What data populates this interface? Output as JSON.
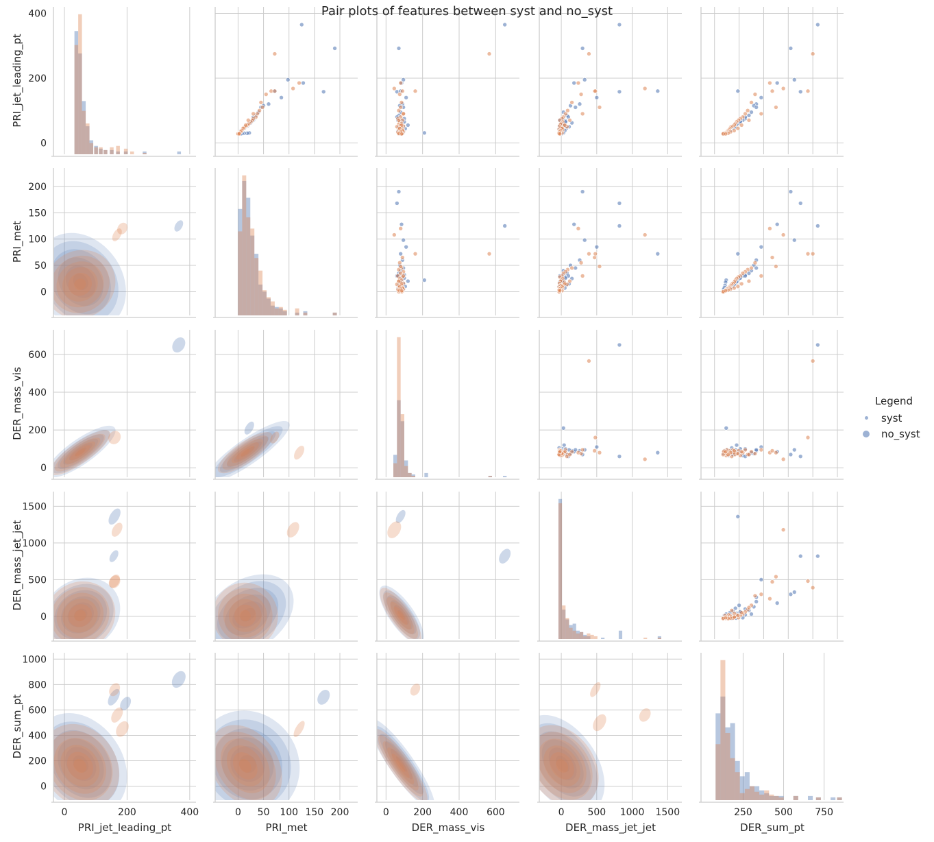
{
  "title": "Pair plots of features between syst and no_syst",
  "legend": {
    "title": "Legend",
    "items": [
      {
        "label": "syst",
        "color": "#4c72b0",
        "marker": "small-dot"
      },
      {
        "label": "no_syst",
        "color": "#4c72b0",
        "marker": "large-dot"
      }
    ]
  },
  "colors": {
    "syst": "#4c72b0",
    "no_syst": "#dd8452",
    "grid": "#cccccc",
    "text": "#262626"
  },
  "chart_data": {
    "type": "pairplot",
    "variables": [
      {
        "name": "PRI_jet_leading_pt",
        "lim": [
          -35,
          420
        ],
        "ticks": [
          0,
          200,
          400
        ]
      },
      {
        "name": "PRI_met",
        "lim": [
          -45,
          235
        ],
        "ticks": [
          0,
          50,
          100,
          150,
          200
        ]
      },
      {
        "name": "DER_mass_vis",
        "lim": [
          -50,
          730
        ],
        "ticks": [
          0,
          200,
          400,
          600
        ]
      },
      {
        "name": "DER_mass_jet_jet",
        "lim": [
          -310,
          1700
        ],
        "ticks": [
          0,
          500,
          1000,
          1500
        ]
      },
      {
        "name": "DER_sum_pt",
        "lim": [
          -110,
          1050
        ],
        "ticks": [
          0,
          200,
          400,
          600,
          800,
          1000
        ]
      }
    ],
    "diag_lim": [
      {
        "lim": [
          -35,
          420
        ],
        "ticks": [
          0,
          200,
          400
        ]
      },
      {
        "lim": [
          -45,
          235
        ],
        "ticks": [
          0,
          100,
          200
        ]
      },
      {
        "lim": [
          -50,
          730
        ],
        "ticks": [
          0,
          200,
          400,
          600
        ]
      },
      {
        "lim": [
          -310,
          1700
        ],
        "ticks": [
          0,
          1000
        ]
      },
      {
        "lim": [
          -10,
          870
        ],
        "ticks": [
          250,
          500,
          750
        ]
      }
    ],
    "hist": [
      {
        "bins": [
          [
            32,
            12
          ],
          [
            44,
            12
          ],
          [
            56,
            12
          ],
          [
            68,
            12
          ],
          [
            80,
            12
          ],
          [
            95,
            12
          ],
          [
            110,
            12
          ],
          [
            125,
            12
          ],
          [
            145,
            12
          ],
          [
            165,
            12
          ],
          [
            190,
            12
          ],
          [
            210,
            12
          ],
          [
            250,
            12
          ],
          [
            360,
            12
          ]
        ],
        "syst": [
          0.88,
          0.72,
          0.38,
          0.2,
          0.1,
          0.06,
          0.04,
          0.03,
          0.03,
          0.02,
          0.02,
          0.0,
          0.02,
          0.02
        ],
        "no_syst": [
          0.78,
          1.0,
          0.31,
          0.22,
          0.08,
          0.05,
          0.05,
          0.03,
          0.05,
          0.06,
          0.04,
          0.02,
          0.01,
          0.0
        ]
      },
      {
        "bins": [
          [
            0,
            8
          ],
          [
            8,
            8
          ],
          [
            16,
            8
          ],
          [
            24,
            8
          ],
          [
            32,
            8
          ],
          [
            40,
            8
          ],
          [
            48,
            8
          ],
          [
            56,
            8
          ],
          [
            64,
            8
          ],
          [
            72,
            8
          ],
          [
            80,
            8
          ],
          [
            88,
            8
          ],
          [
            112,
            8
          ],
          [
            128,
            8
          ],
          [
            186,
            8
          ]
        ],
        "syst": [
          0.76,
          0.96,
          0.84,
          0.57,
          0.44,
          0.22,
          0.17,
          0.12,
          0.07,
          0.06,
          0.05,
          0.03,
          0.02,
          0.03,
          0.02
        ],
        "no_syst": [
          0.6,
          1.0,
          0.7,
          0.62,
          0.41,
          0.32,
          0.18,
          0.13,
          0.1,
          0.05,
          0.06,
          0.04,
          0.05,
          0.02,
          0.02
        ],
        "note_max_scale": 0.75
      },
      {
        "bins": [
          [
            40,
            20
          ],
          [
            60,
            20
          ],
          [
            80,
            20
          ],
          [
            100,
            20
          ],
          [
            120,
            20
          ],
          [
            140,
            20
          ],
          [
            210,
            20
          ],
          [
            560,
            20
          ],
          [
            640,
            20
          ]
        ],
        "syst": [
          0.16,
          0.55,
          0.4,
          0.12,
          0.03,
          0.02,
          0.03,
          0.01,
          0.01
        ],
        "no_syst": [
          0.1,
          1.0,
          0.45,
          0.08,
          0.03,
          0.01,
          0.0,
          0.01,
          0.0
        ]
      },
      {
        "bins": [
          [
            -40,
            50
          ],
          [
            10,
            50
          ],
          [
            60,
            50
          ],
          [
            110,
            50
          ],
          [
            160,
            50
          ],
          [
            210,
            50
          ],
          [
            260,
            50
          ],
          [
            310,
            50
          ],
          [
            360,
            50
          ],
          [
            410,
            50
          ],
          [
            460,
            50
          ],
          [
            560,
            50
          ],
          [
            810,
            50
          ],
          [
            1160,
            50
          ],
          [
            1360,
            50
          ]
        ],
        "syst": [
          1.0,
          0.21,
          0.14,
          0.1,
          0.11,
          0.06,
          0.05,
          0.03,
          0.02,
          0.0,
          0.0,
          0.01,
          0.06,
          0.0,
          0.02
        ],
        "no_syst": [
          0.97,
          0.24,
          0.15,
          0.08,
          0.06,
          0.04,
          0.05,
          0.02,
          0.04,
          0.03,
          0.02,
          0.0,
          0.0,
          0.01,
          0.01
        ]
      },
      {
        "bins": [
          [
            80,
            30
          ],
          [
            110,
            30
          ],
          [
            140,
            30
          ],
          [
            170,
            30
          ],
          [
            200,
            30
          ],
          [
            230,
            30
          ],
          [
            260,
            30
          ],
          [
            290,
            30
          ],
          [
            320,
            30
          ],
          [
            350,
            30
          ],
          [
            380,
            30
          ],
          [
            410,
            30
          ],
          [
            440,
            30
          ],
          [
            470,
            30
          ],
          [
            560,
            30
          ],
          [
            650,
            30
          ],
          [
            700,
            30
          ],
          [
            790,
            30
          ],
          [
            830,
            30
          ]
        ],
        "syst": [
          0.62,
          0.74,
          0.52,
          0.55,
          0.28,
          0.17,
          0.2,
          0.1,
          0.1,
          0.07,
          0.05,
          0.03,
          0.03,
          0.03,
          0.03,
          0.03,
          0.02,
          0.02,
          0.02
        ],
        "no_syst": [
          0.4,
          1.0,
          0.48,
          0.3,
          0.2,
          0.05,
          0.08,
          0.1,
          0.06,
          0.04,
          0.07,
          0.04,
          0.03,
          0.02,
          0.03,
          0.0,
          0.02,
          0.0,
          0.02
        ]
      }
    ],
    "series": {
      "syst": {
        "PRI_jet_leading_pt": [
          292,
          195,
          158,
          185,
          140,
          120,
          115,
          95,
          85,
          75,
          70,
          68,
          62,
          60,
          55,
          52,
          50,
          48,
          45,
          44,
          42,
          40,
          38,
          36,
          35,
          33,
          32,
          31,
          30,
          30,
          29,
          28,
          365,
          160,
          110,
          80,
          65,
          58,
          47,
          39
        ],
        "PRI_met": [
          190,
          98,
          168,
          128,
          85,
          60,
          50,
          40,
          35,
          32,
          30,
          28,
          25,
          22,
          20,
          18,
          15,
          14,
          12,
          10,
          9,
          8,
          7,
          6,
          5,
          4,
          3,
          22,
          18,
          12,
          8,
          5,
          125,
          72,
          45,
          30,
          26,
          19,
          11,
          6
        ],
        "DER_mass_vis": [
          70,
          95,
          60,
          85,
          110,
          90,
          75,
          80,
          70,
          100,
          65,
          85,
          90,
          80,
          120,
          75,
          95,
          85,
          70,
          105,
          80,
          90,
          75,
          65,
          85,
          95,
          70,
          210,
          85,
          80,
          90,
          75,
          650,
          80,
          95,
          60,
          100,
          85,
          70,
          90
        ],
        "DER_mass_jet_jet": [
          300,
          330,
          820,
          180,
          500,
          260,
          130,
          30,
          80,
          20,
          -20,
          60,
          150,
          0,
          40,
          -25,
          110,
          0,
          70,
          -30,
          10,
          -10,
          50,
          0,
          -30,
          -20,
          -25,
          30,
          0,
          -15,
          10,
          -25,
          820,
          1360,
          200,
          100,
          60,
          15,
          -10,
          -25
        ],
        "DER_sum_pt": [
          620,
          650,
          700,
          510,
          380,
          340,
          320,
          300,
          280,
          250,
          230,
          210,
          200,
          190,
          180,
          175,
          170,
          160,
          150,
          140,
          135,
          130,
          125,
          115,
          110,
          105,
          100,
          95,
          90,
          85,
          80,
          75,
          840,
          190,
          340,
          250,
          210,
          180,
          150,
          110
        ]
      },
      "no_syst": {
        "PRI_jet_leading_pt": [
          275,
          185,
          168,
          160,
          150,
          125,
          100,
          90,
          80,
          75,
          70,
          65,
          60,
          58,
          55,
          52,
          50,
          48,
          45,
          42,
          40,
          38,
          36,
          35,
          33,
          32,
          31,
          30,
          29,
          28,
          160,
          110,
          90,
          70,
          55,
          45,
          38,
          34,
          30,
          28
        ],
        "PRI_met": [
          72,
          120,
          108,
          65,
          55,
          45,
          42,
          38,
          35,
          30,
          28,
          25,
          22,
          20,
          18,
          16,
          14,
          12,
          10,
          9,
          8,
          7,
          6,
          5,
          4,
          3,
          2,
          1,
          0,
          0,
          72,
          48,
          30,
          20,
          15,
          10,
          7,
          5,
          3,
          2
        ],
        "DER_mass_vis": [
          565,
          80,
          45,
          90,
          75,
          85,
          70,
          95,
          80,
          65,
          90,
          75,
          85,
          70,
          80,
          95,
          60,
          85,
          75,
          90,
          70,
          80,
          85,
          95,
          65,
          75,
          80,
          90,
          85,
          70,
          160,
          80,
          95,
          70,
          85,
          75,
          90,
          80,
          70,
          85
        ],
        "DER_mass_jet_jet": [
          390,
          240,
          1180,
          470,
          280,
          150,
          90,
          60,
          30,
          10,
          -20,
          20,
          0,
          -10,
          40,
          -25,
          80,
          -5,
          10,
          -30,
          20,
          -15,
          0,
          -25,
          -10,
          -30,
          10,
          -20,
          -25,
          -30,
          480,
          540,
          300,
          120,
          50,
          10,
          -10,
          -25,
          -30,
          -20
        ],
        "DER_sum_pt": [
          800,
          450,
          560,
          470,
          330,
          300,
          270,
          250,
          230,
          210,
          195,
          180,
          170,
          165,
          160,
          150,
          140,
          130,
          125,
          120,
          115,
          110,
          105,
          100,
          95,
          90,
          85,
          80,
          75,
          70,
          760,
          500,
          380,
          280,
          220,
          190,
          160,
          130,
          110,
          90
        ]
      }
    },
    "kde": {
      "syst": {
        "levels": 6
      },
      "no_syst": {
        "levels": 6
      }
    }
  }
}
